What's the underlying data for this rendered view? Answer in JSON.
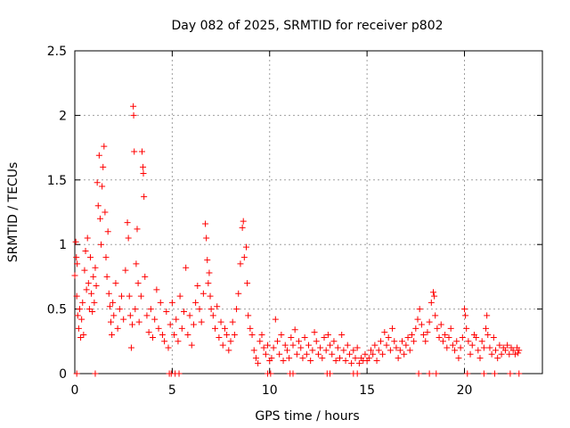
{
  "chart_data": {
    "type": "scatter",
    "title": "Day 082 of 2025, SRMTID for receiver p802",
    "xlabel": "GPS time / hours",
    "ylabel": "SRMTID / TECUs",
    "xlim": [
      0,
      24
    ],
    "ylim": [
      0,
      2.5
    ],
    "x_ticks": [
      0,
      5,
      10,
      15,
      20
    ],
    "x_tick_labels": [
      "0",
      "5",
      "10",
      "15",
      "20"
    ],
    "y_ticks": [
      0,
      0.5,
      1,
      1.5,
      2,
      2.5
    ],
    "y_tick_labels": [
      "0",
      "0.5",
      "1",
      "1.5",
      "2",
      "2.5"
    ],
    "grid": true,
    "marker": "+",
    "series": [
      {
        "name": "p802",
        "color": "#ff0000",
        "points": [
          [
            0.0,
            0.76
          ],
          [
            0.05,
            1.02
          ],
          [
            0.08,
            0.9
          ],
          [
            0.1,
            0.6
          ],
          [
            0.12,
            0.85
          ],
          [
            0.15,
            0.45
          ],
          [
            0.2,
            0.35
          ],
          [
            0.25,
            0.5
          ],
          [
            0.3,
            0.28
          ],
          [
            0.35,
            0.42
          ],
          [
            0.4,
            0.55
          ],
          [
            0.45,
            0.3
          ],
          [
            0.5,
            0.8
          ],
          [
            0.55,
            0.95
          ],
          [
            0.6,
            0.65
          ],
          [
            0.65,
            1.05
          ],
          [
            0.7,
            0.7
          ],
          [
            0.75,
            0.5
          ],
          [
            0.8,
            0.9
          ],
          [
            0.85,
            0.62
          ],
          [
            0.9,
            0.48
          ],
          [
            0.95,
            0.75
          ],
          [
            1.0,
            0.55
          ],
          [
            1.05,
            0.82
          ],
          [
            1.1,
            0.68
          ],
          [
            1.15,
            1.48
          ],
          [
            1.2,
            1.3
          ],
          [
            1.25,
            1.69
          ],
          [
            1.3,
            1.2
          ],
          [
            1.35,
            1.0
          ],
          [
            1.4,
            1.45
          ],
          [
            1.45,
            1.6
          ],
          [
            1.5,
            1.76
          ],
          [
            1.55,
            1.25
          ],
          [
            1.6,
            0.9
          ],
          [
            1.65,
            0.75
          ],
          [
            1.7,
            1.1
          ],
          [
            1.75,
            0.62
          ],
          [
            1.8,
            0.52
          ],
          [
            1.85,
            0.4
          ],
          [
            1.9,
            0.3
          ],
          [
            1.95,
            0.55
          ],
          [
            2.0,
            0.45
          ],
          [
            2.1,
            0.7
          ],
          [
            2.2,
            0.35
          ],
          [
            2.3,
            0.5
          ],
          [
            2.4,
            0.6
          ],
          [
            2.5,
            0.42
          ],
          [
            2.6,
            0.8
          ],
          [
            2.7,
            1.17
          ],
          [
            2.75,
            1.05
          ],
          [
            2.8,
            0.6
          ],
          [
            2.85,
            0.45
          ],
          [
            2.9,
            0.2
          ],
          [
            2.95,
            0.38
          ],
          [
            3.0,
            2.07
          ],
          [
            3.02,
            2.0
          ],
          [
            3.05,
            1.72
          ],
          [
            3.1,
            0.5
          ],
          [
            3.15,
            0.85
          ],
          [
            3.2,
            1.12
          ],
          [
            3.25,
            0.7
          ],
          [
            3.3,
            0.4
          ],
          [
            3.4,
            0.6
          ],
          [
            3.45,
            1.72
          ],
          [
            3.5,
            1.6
          ],
          [
            3.52,
            1.55
          ],
          [
            3.55,
            1.37
          ],
          [
            3.6,
            0.75
          ],
          [
            3.7,
            0.45
          ],
          [
            3.8,
            0.32
          ],
          [
            3.9,
            0.5
          ],
          [
            4.0,
            0.28
          ],
          [
            4.1,
            0.42
          ],
          [
            4.2,
            0.65
          ],
          [
            4.3,
            0.35
          ],
          [
            4.4,
            0.55
          ],
          [
            4.5,
            0.3
          ],
          [
            4.6,
            0.25
          ],
          [
            4.7,
            0.48
          ],
          [
            4.8,
            0.2
          ],
          [
            4.9,
            0.38
          ],
          [
            5.0,
            0.55
          ],
          [
            5.1,
            0.3
          ],
          [
            5.2,
            0.42
          ],
          [
            5.3,
            0.25
          ],
          [
            5.4,
            0.6
          ],
          [
            5.5,
            0.35
          ],
          [
            5.6,
            0.48
          ],
          [
            5.7,
            0.82
          ],
          [
            5.8,
            0.3
          ],
          [
            5.9,
            0.45
          ],
          [
            6.0,
            0.22
          ],
          [
            6.1,
            0.38
          ],
          [
            6.2,
            0.55
          ],
          [
            6.3,
            0.68
          ],
          [
            6.4,
            0.5
          ],
          [
            6.5,
            0.4
          ],
          [
            6.6,
            0.62
          ],
          [
            6.7,
            1.16
          ],
          [
            6.75,
            1.05
          ],
          [
            6.8,
            0.88
          ],
          [
            6.85,
            0.7
          ],
          [
            6.9,
            0.78
          ],
          [
            6.95,
            0.6
          ],
          [
            7.0,
            0.5
          ],
          [
            7.1,
            0.45
          ],
          [
            7.2,
            0.35
          ],
          [
            7.3,
            0.52
          ],
          [
            7.4,
            0.28
          ],
          [
            7.5,
            0.4
          ],
          [
            7.6,
            0.22
          ],
          [
            7.7,
            0.35
          ],
          [
            7.8,
            0.3
          ],
          [
            7.9,
            0.18
          ],
          [
            8.0,
            0.25
          ],
          [
            8.1,
            0.4
          ],
          [
            8.2,
            0.3
          ],
          [
            8.3,
            0.5
          ],
          [
            8.4,
            0.62
          ],
          [
            8.5,
            0.85
          ],
          [
            8.6,
            1.13
          ],
          [
            8.65,
            1.18
          ],
          [
            8.7,
            0.9
          ],
          [
            8.8,
            0.98
          ],
          [
            8.85,
            0.7
          ],
          [
            8.9,
            0.45
          ],
          [
            9.0,
            0.35
          ],
          [
            9.1,
            0.3
          ],
          [
            9.2,
            0.18
          ],
          [
            9.3,
            0.12
          ],
          [
            9.4,
            0.08
          ],
          [
            9.5,
            0.25
          ],
          [
            9.6,
            0.3
          ],
          [
            9.7,
            0.2
          ],
          [
            9.8,
            0.15
          ],
          [
            9.9,
            0.22
          ],
          [
            10.0,
            0.1
          ],
          [
            10.1,
            0.12
          ],
          [
            10.2,
            0.2
          ],
          [
            10.3,
            0.42
          ],
          [
            10.4,
            0.25
          ],
          [
            10.5,
            0.15
          ],
          [
            10.6,
            0.3
          ],
          [
            10.7,
            0.1
          ],
          [
            10.8,
            0.22
          ],
          [
            10.9,
            0.18
          ],
          [
            11.0,
            0.12
          ],
          [
            11.1,
            0.28
          ],
          [
            11.2,
            0.22
          ],
          [
            11.3,
            0.34
          ],
          [
            11.4,
            0.15
          ],
          [
            11.5,
            0.25
          ],
          [
            11.6,
            0.2
          ],
          [
            11.7,
            0.12
          ],
          [
            11.8,
            0.28
          ],
          [
            11.9,
            0.15
          ],
          [
            12.0,
            0.22
          ],
          [
            12.1,
            0.1
          ],
          [
            12.2,
            0.18
          ],
          [
            12.3,
            0.32
          ],
          [
            12.4,
            0.25
          ],
          [
            12.5,
            0.15
          ],
          [
            12.6,
            0.2
          ],
          [
            12.7,
            0.12
          ],
          [
            12.8,
            0.28
          ],
          [
            12.9,
            0.18
          ],
          [
            13.0,
            0.3
          ],
          [
            13.1,
            0.22
          ],
          [
            13.2,
            0.15
          ],
          [
            13.3,
            0.25
          ],
          [
            13.4,
            0.1
          ],
          [
            13.5,
            0.2
          ],
          [
            13.6,
            0.12
          ],
          [
            13.7,
            0.3
          ],
          [
            13.8,
            0.18
          ],
          [
            13.9,
            0.1
          ],
          [
            14.0,
            0.22
          ],
          [
            14.1,
            0.15
          ],
          [
            14.2,
            0.08
          ],
          [
            14.3,
            0.18
          ],
          [
            14.4,
            0.12
          ],
          [
            14.5,
            0.2
          ],
          [
            14.6,
            0.08
          ],
          [
            14.7,
            0.12
          ],
          [
            14.8,
            0.1
          ],
          [
            14.9,
            0.15
          ],
          [
            15.0,
            0.1
          ],
          [
            15.1,
            0.12
          ],
          [
            15.2,
            0.18
          ],
          [
            15.3,
            0.15
          ],
          [
            15.4,
            0.22
          ],
          [
            15.5,
            0.1
          ],
          [
            15.6,
            0.18
          ],
          [
            15.7,
            0.25
          ],
          [
            15.8,
            0.15
          ],
          [
            15.9,
            0.32
          ],
          [
            16.0,
            0.22
          ],
          [
            16.1,
            0.28
          ],
          [
            16.2,
            0.18
          ],
          [
            16.3,
            0.35
          ],
          [
            16.4,
            0.25
          ],
          [
            16.5,
            0.2
          ],
          [
            16.6,
            0.12
          ],
          [
            16.7,
            0.18
          ],
          [
            16.8,
            0.25
          ],
          [
            16.9,
            0.15
          ],
          [
            17.0,
            0.22
          ],
          [
            17.1,
            0.28
          ],
          [
            17.2,
            0.18
          ],
          [
            17.3,
            0.3
          ],
          [
            17.4,
            0.25
          ],
          [
            17.5,
            0.35
          ],
          [
            17.6,
            0.42
          ],
          [
            17.7,
            0.5
          ],
          [
            17.8,
            0.38
          ],
          [
            17.9,
            0.3
          ],
          [
            18.0,
            0.25
          ],
          [
            18.1,
            0.32
          ],
          [
            18.2,
            0.4
          ],
          [
            18.3,
            0.55
          ],
          [
            18.4,
            0.63
          ],
          [
            18.45,
            0.6
          ],
          [
            18.5,
            0.45
          ],
          [
            18.6,
            0.35
          ],
          [
            18.7,
            0.28
          ],
          [
            18.8,
            0.38
          ],
          [
            18.9,
            0.25
          ],
          [
            19.0,
            0.3
          ],
          [
            19.1,
            0.2
          ],
          [
            19.2,
            0.28
          ],
          [
            19.3,
            0.35
          ],
          [
            19.4,
            0.22
          ],
          [
            19.5,
            0.18
          ],
          [
            19.6,
            0.25
          ],
          [
            19.7,
            0.12
          ],
          [
            19.8,
            0.2
          ],
          [
            19.9,
            0.28
          ],
          [
            20.0,
            0.5
          ],
          [
            20.05,
            0.45
          ],
          [
            20.1,
            0.35
          ],
          [
            20.2,
            0.25
          ],
          [
            20.3,
            0.15
          ],
          [
            20.4,
            0.22
          ],
          [
            20.5,
            0.3
          ],
          [
            20.6,
            0.28
          ],
          [
            20.7,
            0.18
          ],
          [
            20.8,
            0.12
          ],
          [
            20.9,
            0.25
          ],
          [
            21.0,
            0.2
          ],
          [
            21.1,
            0.35
          ],
          [
            21.15,
            0.45
          ],
          [
            21.2,
            0.3
          ],
          [
            21.3,
            0.2
          ],
          [
            21.4,
            0.15
          ],
          [
            21.5,
            0.28
          ],
          [
            21.6,
            0.18
          ],
          [
            21.7,
            0.12
          ],
          [
            21.8,
            0.22
          ],
          [
            21.9,
            0.15
          ],
          [
            22.0,
            0.2
          ],
          [
            22.1,
            0.18
          ],
          [
            22.2,
            0.22
          ],
          [
            22.3,
            0.15
          ],
          [
            22.4,
            0.2
          ],
          [
            22.5,
            0.18
          ],
          [
            22.6,
            0.15
          ],
          [
            22.7,
            0.2
          ],
          [
            22.75,
            0.16
          ],
          [
            22.8,
            0.18
          ],
          [
            0.1,
            0.0
          ],
          [
            1.05,
            0.0
          ],
          [
            4.85,
            0.0
          ],
          [
            4.95,
            0.0
          ],
          [
            5.15,
            0.0
          ],
          [
            5.35,
            0.0
          ],
          [
            9.9,
            0.0
          ],
          [
            10.05,
            0.0
          ],
          [
            11.05,
            0.0
          ],
          [
            11.2,
            0.0
          ],
          [
            12.95,
            0.0
          ],
          [
            13.1,
            0.0
          ],
          [
            14.3,
            0.0
          ],
          [
            14.5,
            0.0
          ],
          [
            17.65,
            0.0
          ],
          [
            18.2,
            0.0
          ],
          [
            18.55,
            0.0
          ],
          [
            20.15,
            0.0
          ],
          [
            21.0,
            0.0
          ],
          [
            21.55,
            0.0
          ],
          [
            22.35,
            0.0
          ],
          [
            22.8,
            0.0
          ]
        ]
      }
    ]
  }
}
